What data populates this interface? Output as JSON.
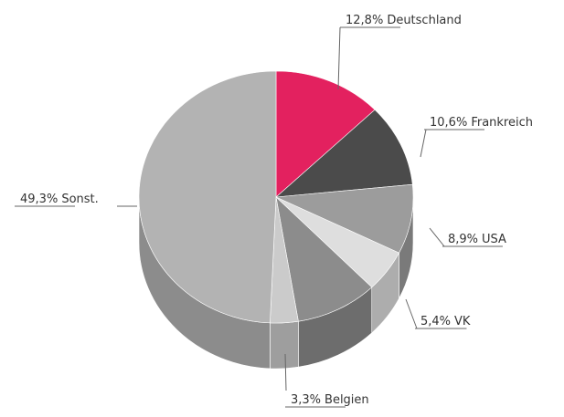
{
  "chart_data": {
    "type": "pie3d",
    "categories": [
      "Deutschland",
      "Frankreich",
      "USA",
      "VK",
      null,
      "Belgien",
      "Sonst."
    ],
    "values": [
      12.8,
      10.6,
      8.9,
      5.4,
      9.7,
      3.3,
      49.3
    ],
    "value_labels": [
      "12,8%",
      "10,6%",
      "8,9%",
      "5,4%",
      null,
      "3,3%",
      "49,3%"
    ],
    "colors": [
      "#e3215f",
      "#4b4b4b",
      "#9c9c9c",
      "#dedede",
      "#8c8c8c",
      "#cbcbcb",
      "#b3b3b3"
    ]
  }
}
